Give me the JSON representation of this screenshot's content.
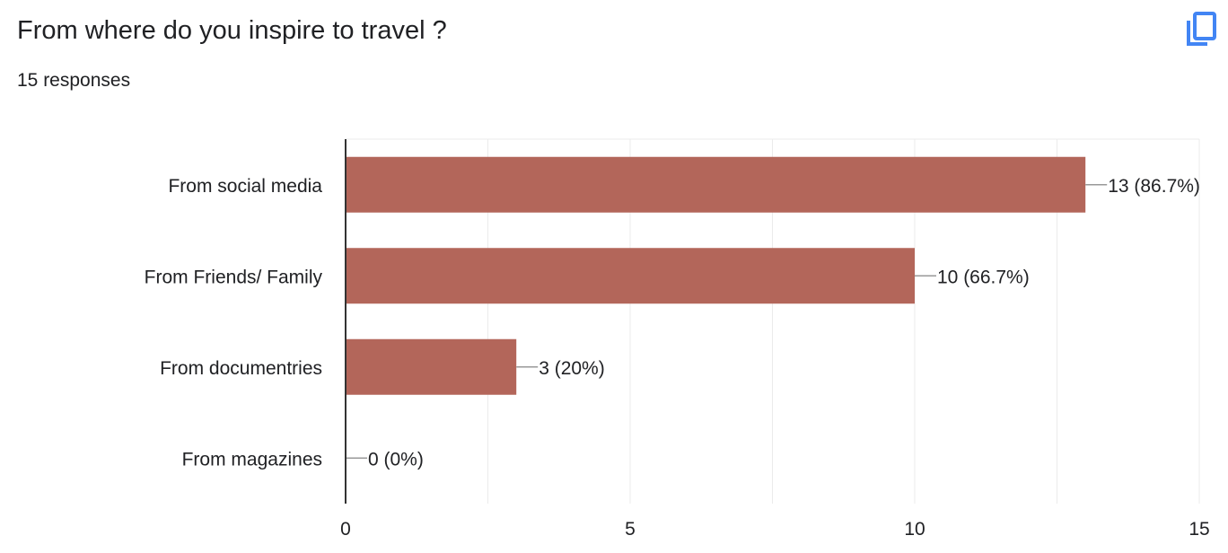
{
  "header": {
    "title": "From where do you inspire to travel ?",
    "responses": "15 responses",
    "copy_icon": "copy-icon"
  },
  "colors": {
    "bar": "#b3665a",
    "grid": "#ebebeb",
    "axis": "#333333",
    "accent": "#4285f4"
  },
  "chart_data": {
    "type": "bar",
    "orientation": "horizontal",
    "categories": [
      "From social media",
      "From Friends/ Family",
      "From documentries",
      "From magazines"
    ],
    "values": [
      13,
      10,
      3,
      0
    ],
    "data_labels": [
      "13 (86.7%)",
      "10 (66.7%)",
      "3 (20%)",
      "0 (0%)"
    ],
    "xlim": [
      0,
      15
    ],
    "xticks": [
      0,
      5,
      10,
      15
    ],
    "grid": true
  }
}
